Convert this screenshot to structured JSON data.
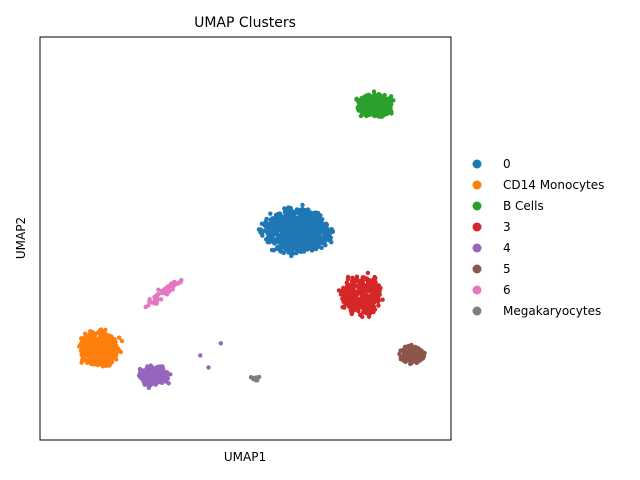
{
  "chart_data": {
    "type": "scatter",
    "title": "UMAP Clusters",
    "xlabel": "UMAP1",
    "ylabel": "UMAP2",
    "ticks": "none",
    "grid": false,
    "legend_placement": "right",
    "xlim": [
      -10,
      10
    ],
    "ylim": [
      -10,
      10
    ],
    "series": [
      {
        "name": "0",
        "color": "#1f77b4",
        "center": [
          2.55,
          0.35
        ],
        "spread": [
          1.55,
          1.05
        ],
        "count": 900
      },
      {
        "name": "CD14 Monocytes",
        "color": "#ff7f0e",
        "center": [
          -7.15,
          -5.45
        ],
        "spread": [
          0.95,
          0.85
        ],
        "count": 480
      },
      {
        "name": "B Cells",
        "color": "#2ca02c",
        "center": [
          6.3,
          6.6
        ],
        "spread": [
          0.85,
          0.55
        ],
        "count": 420
      },
      {
        "name": "3",
        "color": "#d62728",
        "center": [
          5.6,
          -2.8
        ],
        "spread": [
          0.95,
          0.95
        ],
        "count": 300
      },
      {
        "name": "4",
        "color": "#9467bd",
        "center": [
          -4.5,
          -6.8
        ],
        "spread": [
          0.75,
          0.45
        ],
        "count": 220
      },
      {
        "name": "5",
        "color": "#8c564b",
        "center": [
          8.1,
          -5.75
        ],
        "spread": [
          0.6,
          0.45
        ],
        "count": 130
      },
      {
        "name": "6",
        "color": "#e377c2",
        "center": [
          -4.0,
          -2.7
        ],
        "spread": [
          0.75,
          0.6
        ],
        "count": 55
      },
      {
        "name": "Megakaryocytes",
        "color": "#7f7f7f",
        "center": [
          0.5,
          -6.95
        ],
        "spread": [
          0.2,
          0.12
        ],
        "count": 10
      }
    ]
  }
}
